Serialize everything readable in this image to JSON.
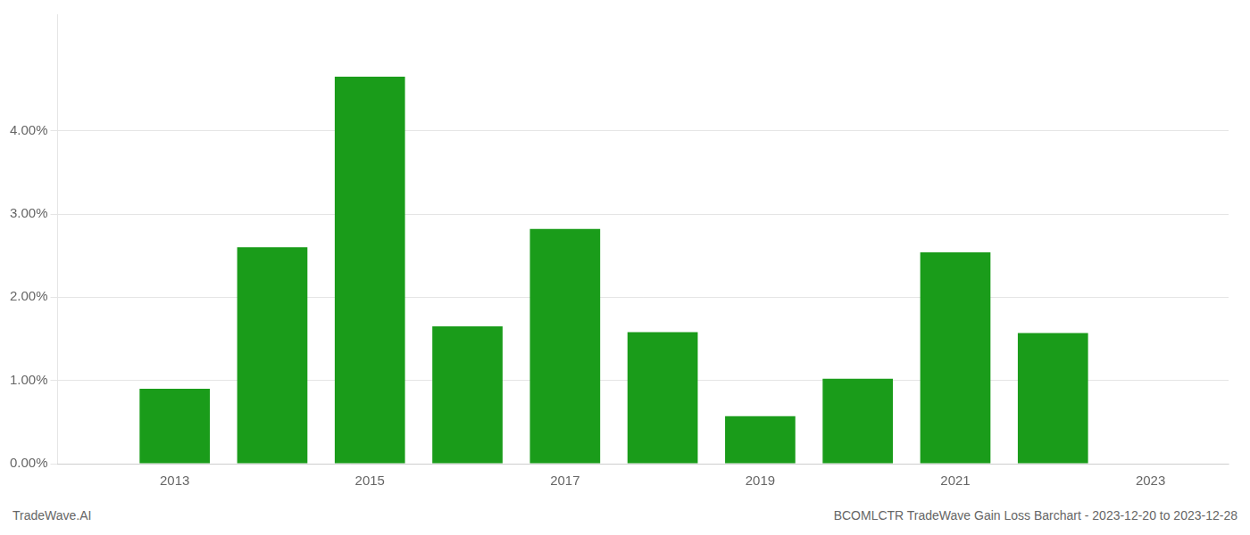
{
  "chart_data": {
    "type": "bar",
    "x": [
      2013,
      2014,
      2015,
      2016,
      2017,
      2018,
      2019,
      2020,
      2021,
      2022
    ],
    "values": [
      0.009,
      0.026,
      0.0465,
      0.0165,
      0.0282,
      0.0158,
      0.0057,
      0.0102,
      0.0254,
      0.0157
    ],
    "color": "#1a9c1a",
    "xlim": [
      2011.8,
      2023.8
    ],
    "xticks": [
      2013,
      2015,
      2017,
      2019,
      2021,
      2023
    ],
    "ylim": [
      0,
      0.054
    ],
    "yticks": [
      {
        "value": 0.0,
        "label": "0.00%"
      },
      {
        "value": 0.01,
        "label": "1.00%"
      },
      {
        "value": 0.02,
        "label": "2.00%"
      },
      {
        "value": 0.03,
        "label": "3.00%"
      },
      {
        "value": 0.04,
        "label": "4.00%"
      }
    ],
    "grid": true,
    "annotations": [
      "TradeWave.AI",
      "BCOMLCTR TradeWave Gain Loss Barchart - 2023-12-20 to 2023-12-28"
    ]
  }
}
